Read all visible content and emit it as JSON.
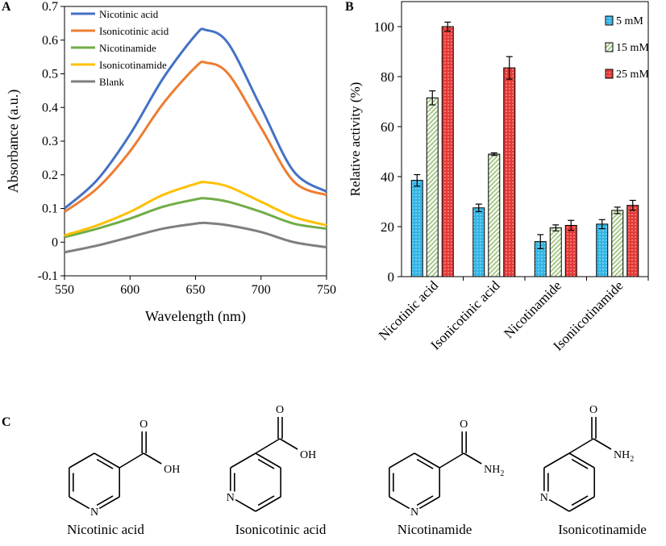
{
  "panels": {
    "a": "A",
    "b": "B",
    "c": "C"
  },
  "chart_data": [
    {
      "type": "line",
      "panel": "A",
      "xlabel": "Wavelength (nm)",
      "ylabel": "Absorbance (a.u.)",
      "xlim": [
        550,
        750
      ],
      "ylim": [
        -0.1,
        0.7
      ],
      "xticks": [
        550,
        600,
        650,
        700,
        750
      ],
      "yticks": [
        -0.1,
        0,
        0.1,
        0.2,
        0.3,
        0.4,
        0.5,
        0.6,
        0.7
      ],
      "grid": false,
      "legend_position": "top-left",
      "x": [
        550,
        575,
        600,
        625,
        650,
        658,
        675,
        700,
        725,
        750
      ],
      "series": [
        {
          "name": "Nicotinic acid",
          "color": "#4472C4",
          "values": [
            0.1,
            0.185,
            0.32,
            0.485,
            0.615,
            0.63,
            0.59,
            0.4,
            0.21,
            0.15
          ]
        },
        {
          "name": "Isonicotinic acid",
          "color": "#ED7D31",
          "values": [
            0.09,
            0.16,
            0.27,
            0.41,
            0.52,
            0.533,
            0.5,
            0.34,
            0.18,
            0.14
          ]
        },
        {
          "name": "Nicotinamide",
          "color": "#70AD47",
          "values": [
            0.015,
            0.04,
            0.07,
            0.105,
            0.127,
            0.13,
            0.12,
            0.09,
            0.055,
            0.04
          ]
        },
        {
          "name": "Isonicotinamide",
          "color": "#FFC000",
          "values": [
            0.02,
            0.05,
            0.09,
            0.14,
            0.173,
            0.178,
            0.165,
            0.12,
            0.075,
            0.05
          ]
        },
        {
          "name": "Blank",
          "color": "#7F7F7F",
          "values": [
            -0.03,
            -0.01,
            0.015,
            0.04,
            0.055,
            0.057,
            0.05,
            0.03,
            0.0,
            -0.015
          ]
        }
      ]
    },
    {
      "type": "bar",
      "panel": "B",
      "ylabel": "Relative activity (%)",
      "ylim": [
        0,
        110
      ],
      "yticks": [
        0,
        20,
        40,
        60,
        80,
        100
      ],
      "grid": false,
      "legend_position": "top-right",
      "categories": [
        "Nicotinic acid",
        "Isonicotinic acid",
        "Nicotinamide",
        "Isoniicotinamide"
      ],
      "series": [
        {
          "name": "5 mM",
          "color": "#33B5E5",
          "values": [
            38.5,
            27.5,
            14,
            21
          ],
          "errors": [
            2.3,
            1.5,
            2.8,
            1.8
          ]
        },
        {
          "name": "15 mM",
          "color": "#DDEFC8",
          "values": [
            71.5,
            49,
            19.5,
            26.5
          ],
          "errors": [
            2.8,
            0.5,
            1.2,
            1.3
          ]
        },
        {
          "name": "25 mM",
          "color": "#E53935",
          "values": [
            100,
            83.5,
            20.5,
            28.5
          ],
          "errors": [
            1.8,
            4.5,
            2,
            2
          ]
        }
      ]
    }
  ],
  "molecules": [
    {
      "name": "Nicotinic acid",
      "substituent": "acid",
      "n_pos": "meta",
      "o_label": "O",
      "tail_label": "OH",
      "n_label": "N"
    },
    {
      "name": "Isonicotinic acid",
      "substituent": "acid",
      "n_pos": "para",
      "o_label": "O",
      "tail_label": "OH",
      "n_label": "N"
    },
    {
      "name": "Nicotinamide",
      "substituent": "amide",
      "n_pos": "meta",
      "o_label": "O",
      "tail_label": "NH",
      "tail_sub": "2",
      "n_label": "N"
    },
    {
      "name": "Isonicotinamide",
      "substituent": "amide",
      "n_pos": "para",
      "o_label": "O",
      "tail_label": "NH",
      "tail_sub": "2",
      "n_label": "N"
    }
  ]
}
